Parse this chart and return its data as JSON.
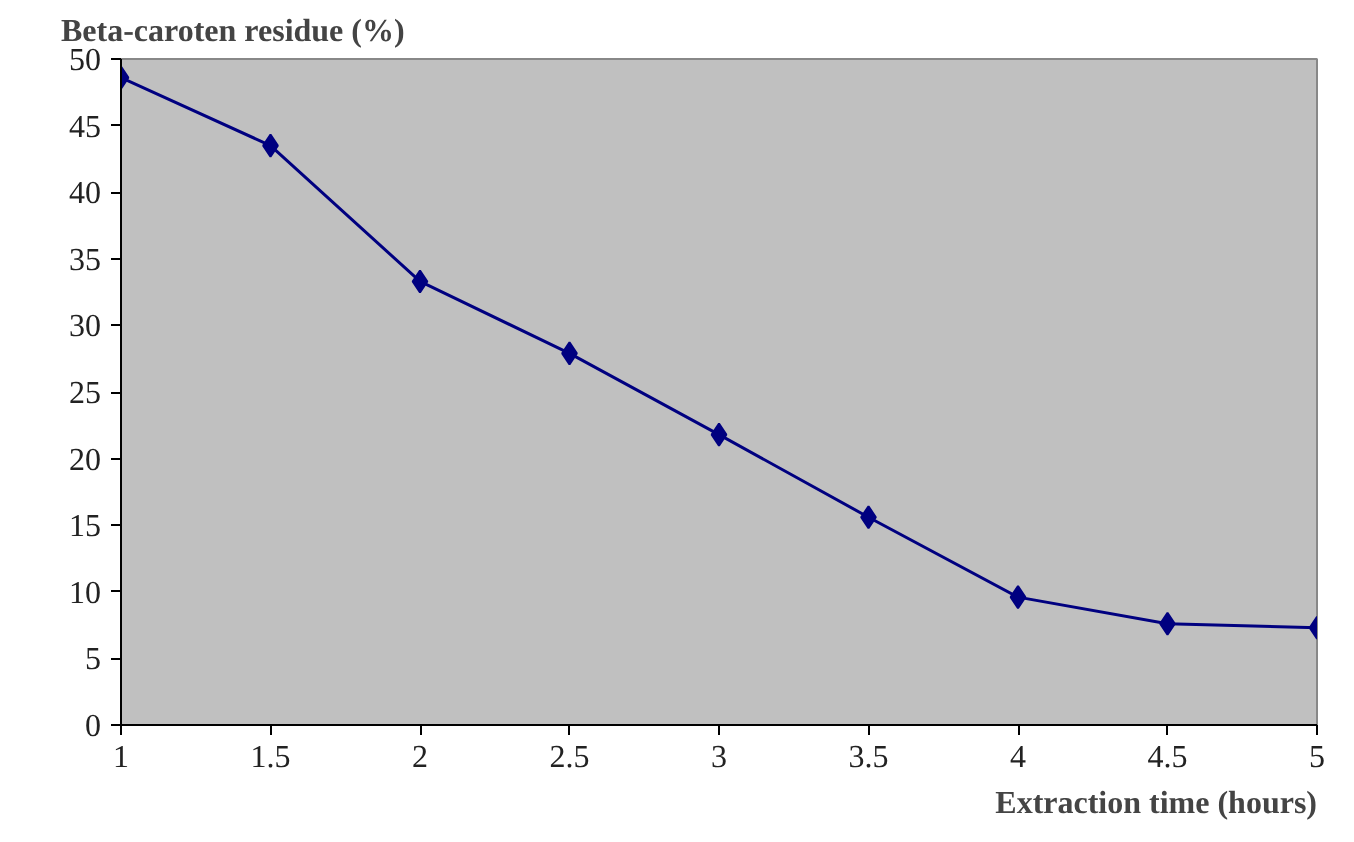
{
  "chart_data": {
    "type": "line",
    "xlabel": "Extraction time (hours)",
    "ylabel": "Beta-caroten residue (%)",
    "x": [
      1,
      1.5,
      2,
      2.5,
      3,
      3.5,
      4,
      4.5,
      5
    ],
    "series": [
      {
        "color": "#000080",
        "values": [
          48.6,
          43.5,
          33.3,
          27.9,
          21.8,
          15.6,
          9.6,
          7.6,
          7.3
        ]
      }
    ],
    "xlim": [
      1,
      5
    ],
    "xticks": [
      1,
      1.5,
      2,
      2.5,
      3,
      3.5,
      4,
      4.5,
      5
    ],
    "ylim": [
      0,
      50
    ],
    "yticks": [
      0,
      5,
      10,
      15,
      20,
      25,
      30,
      35,
      40,
      45,
      50
    ],
    "grid": false,
    "marker": "diamond",
    "line_style": "solid"
  }
}
